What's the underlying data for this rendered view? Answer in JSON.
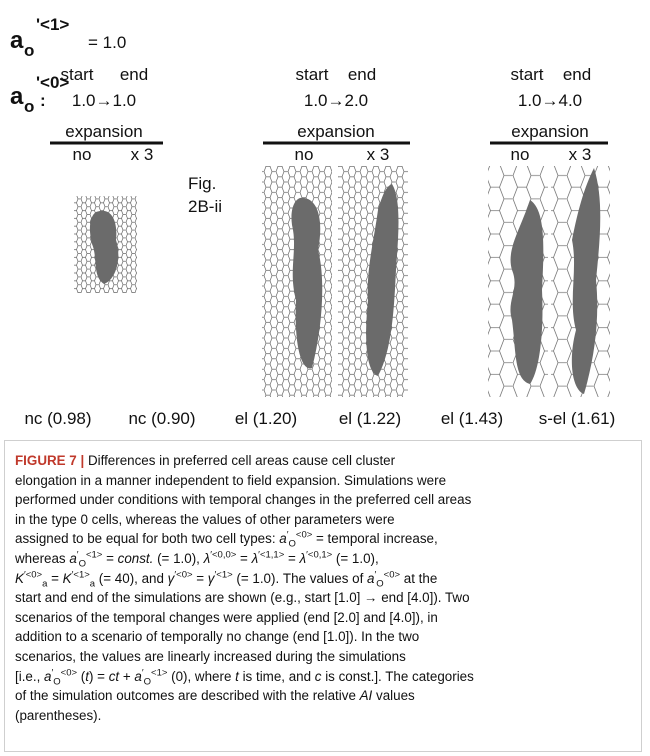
{
  "figure": {
    "a1_label": {
      "base": "a",
      "sub": "o",
      "sup": "'<1>",
      "value": "= 1.0"
    },
    "a0_label": {
      "base": "a",
      "sub": "o",
      "sup": "'<0>",
      "colon": ":"
    },
    "columns": [
      {
        "start": "start",
        "end": "end",
        "range": "1.0→1.0",
        "expansion": "expansion",
        "no": "no",
        "x3": "x 3"
      },
      {
        "start": "start",
        "end": "end",
        "range": "1.0→2.0",
        "expansion": "expansion",
        "no": "no",
        "x3": "x 3"
      },
      {
        "start": "start",
        "end": "end",
        "range": "1.0→4.0",
        "expansion": "expansion",
        "no": "no",
        "x3": "x 3"
      }
    ],
    "fig_ref": [
      "Fig.",
      "2B-ii"
    ],
    "outcomes": [
      "nc (0.98)",
      "nc (0.90)",
      "el (1.20)",
      "el (1.22)",
      "el (1.43)",
      "s-el (1.61)"
    ]
  },
  "caption": {
    "lines": [
      [
        {
          "text": "FIGURE 7 |",
          "style": "b"
        },
        " Differences in preferred cell areas cause cell cluster"
      ],
      [
        "elongation in a manner independent to field expansion. Simulations were"
      ],
      [
        "performed under conditions with temporal changes in the preferred cell areas"
      ],
      [
        "in the type 0 cells, whereas the values of other parameters were"
      ],
      [
        "assigned to be equal for both two cell types: ",
        {
          "text": "a",
          "style": "i"
        },
        {
          "text": "′",
          "style": "sup"
        },
        {
          "text": "O",
          "style": "sub"
        },
        {
          "text": "<0>",
          "style": "sup"
        },
        " = temporal increase,"
      ],
      [
        "whereas ",
        {
          "text": "a",
          "style": "i"
        },
        {
          "text": "′",
          "style": "sup"
        },
        {
          "text": "O",
          "style": "sub"
        },
        {
          "text": "<1>",
          "style": "sup"
        },
        " = ",
        {
          "text": "const.",
          "style": "i"
        },
        " (= 1.0), ",
        {
          "text": "λ",
          "style": "i"
        },
        {
          "text": "′<0,0>",
          "style": "sup"
        },
        " = ",
        {
          "text": "λ",
          "style": "i"
        },
        {
          "text": "′<1,1>",
          "style": "sup"
        },
        " = ",
        {
          "text": "λ",
          "style": "i"
        },
        {
          "text": "′<0,1>",
          "style": "sup"
        },
        " (= 1.0),"
      ],
      [
        {
          "text": "K",
          "style": "i"
        },
        {
          "text": "′<0>",
          "style": "sup"
        },
        {
          "text": "a",
          "style": "sub"
        },
        " = ",
        {
          "text": "K",
          "style": "i"
        },
        {
          "text": "′<1>",
          "style": "sup"
        },
        {
          "text": "a",
          "style": "sub"
        },
        " (= 40), and ",
        {
          "text": "γ",
          "style": "i"
        },
        {
          "text": "′<0>",
          "style": "sup"
        },
        " = ",
        {
          "text": "γ",
          "style": "i"
        },
        {
          "text": "′<1>",
          "style": "sup"
        },
        " (= 1.0). The values of ",
        {
          "text": "a",
          "style": "i"
        },
        {
          "text": "′",
          "style": "sup"
        },
        {
          "text": "O",
          "style": "sub"
        },
        {
          "text": "<0>",
          "style": "sup"
        },
        " at the"
      ],
      [
        "start and end of the simulations are shown (e.g., start [1.0] → end [4.0]). Two"
      ],
      [
        "scenarios of the temporal changes were applied (end [2.0] and [4.0]), in"
      ],
      [
        "addition to a scenario of temporally no change (end [1.0]). In the two"
      ],
      [
        "scenarios, the values are linearly increased during the simulations"
      ],
      [
        "[i.e., ",
        {
          "text": "a",
          "style": "i"
        },
        {
          "text": "′",
          "style": "sup"
        },
        {
          "text": "O",
          "style": "sub"
        },
        {
          "text": "<0>",
          "style": "sup"
        },
        " (",
        {
          "text": "t",
          "style": "i"
        },
        ") = ",
        {
          "text": "ct",
          "style": "i"
        },
        " + ",
        {
          "text": "a",
          "style": "i"
        },
        {
          "text": "′",
          "style": "sup"
        },
        {
          "text": "O",
          "style": "sub"
        },
        {
          "text": "<1>",
          "style": "sup"
        },
        " (0), where ",
        {
          "text": "t",
          "style": "i"
        },
        " is time, and ",
        {
          "text": "c",
          "style": "i"
        },
        " is const.]. The categories"
      ],
      [
        "of the simulation outcomes are described with the relative ",
        {
          "text": "AI",
          "style": "i"
        },
        " values"
      ],
      [
        "(parentheses)."
      ]
    ]
  }
}
